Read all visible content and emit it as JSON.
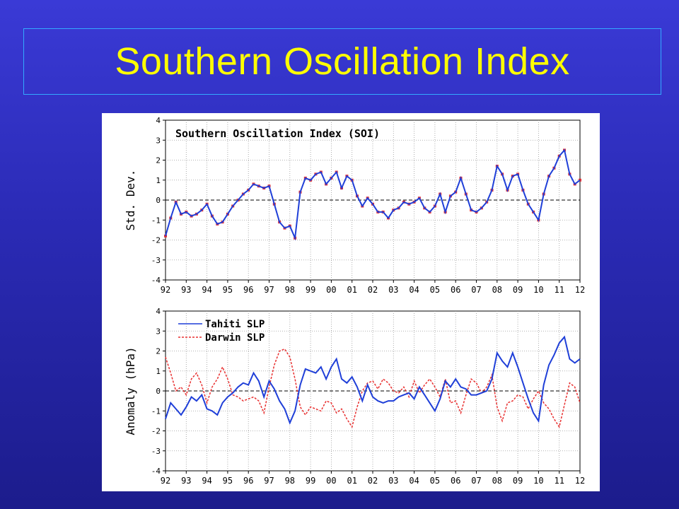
{
  "slide": {
    "title": "Southern Oscillation Index"
  },
  "colors": {
    "title": "#ffff00",
    "soi_line": "#1f3fd8",
    "soi_dots": "#e83030",
    "tahiti": "#1f3fd8",
    "darwin": "#e83030"
  },
  "chart_data": [
    {
      "type": "line",
      "title": "Southern Oscillation Index (SOI)",
      "ylabel": "Std. Dev.",
      "xlabel": "",
      "ylim": [
        -4,
        4
      ],
      "yticks": [
        4,
        3,
        2,
        1,
        0,
        -1,
        -2,
        -3,
        -4
      ],
      "xticks": [
        "92",
        "93",
        "94",
        "95",
        "96",
        "97",
        "98",
        "99",
        "00",
        "01",
        "02",
        "03",
        "04",
        "05",
        "06",
        "07",
        "08",
        "09",
        "10",
        "11",
        "12"
      ],
      "x_range": [
        1992,
        2012
      ],
      "grid": true,
      "series": [
        {
          "style": "line+scatter",
          "x": [
            1992.0,
            1992.25,
            1992.5,
            1992.75,
            1993.0,
            1993.25,
            1993.5,
            1993.75,
            1994.0,
            1994.25,
            1994.5,
            1994.75,
            1995.0,
            1995.25,
            1995.5,
            1995.75,
            1996.0,
            1996.25,
            1996.5,
            1996.75,
            1997.0,
            1997.25,
            1997.5,
            1997.75,
            1998.0,
            1998.25,
            1998.5,
            1998.75,
            1999.0,
            1999.25,
            1999.5,
            1999.75,
            2000.0,
            2000.25,
            2000.5,
            2000.75,
            2001.0,
            2001.25,
            2001.5,
            2001.75,
            2002.0,
            2002.25,
            2002.5,
            2002.75,
            2003.0,
            2003.25,
            2003.5,
            2003.75,
            2004.0,
            2004.25,
            2004.5,
            2004.75,
            2005.0,
            2005.25,
            2005.5,
            2005.75,
            2006.0,
            2006.25,
            2006.5,
            2006.75,
            2007.0,
            2007.25,
            2007.5,
            2007.75,
            2008.0,
            2008.25,
            2008.5,
            2008.75,
            2009.0,
            2009.25,
            2009.5,
            2009.75,
            2010.0,
            2010.25,
            2010.5,
            2010.75,
            2011.0,
            2011.25,
            2011.5,
            2011.75,
            2012.0
          ],
          "values": [
            -1.8,
            -0.9,
            -0.1,
            -0.7,
            -0.6,
            -0.8,
            -0.7,
            -0.5,
            -0.2,
            -0.8,
            -1.2,
            -1.1,
            -0.7,
            -0.3,
            0.0,
            0.3,
            0.5,
            0.8,
            0.7,
            0.6,
            0.7,
            -0.2,
            -1.1,
            -1.4,
            -1.3,
            -1.9,
            0.4,
            1.1,
            1.0,
            1.3,
            1.4,
            0.8,
            1.1,
            1.4,
            0.6,
            1.2,
            1.0,
            0.2,
            -0.3,
            0.1,
            -0.2,
            -0.6,
            -0.6,
            -0.9,
            -0.5,
            -0.4,
            -0.1,
            -0.2,
            -0.1,
            0.1,
            -0.4,
            -0.6,
            -0.3,
            0.3,
            -0.6,
            0.2,
            0.4,
            1.1,
            0.3,
            -0.5,
            -0.6,
            -0.4,
            -0.1,
            0.5,
            1.7,
            1.3,
            0.5,
            1.2,
            1.3,
            0.5,
            -0.2,
            -0.6,
            -1.0,
            0.3,
            1.2,
            1.6,
            2.2,
            2.5,
            1.3,
            0.8,
            1.0
          ]
        }
      ]
    },
    {
      "type": "line",
      "title": "",
      "ylabel": "Anomaly (hPa)",
      "xlabel": "",
      "ylim": [
        -4,
        4
      ],
      "yticks": [
        4,
        3,
        2,
        1,
        0,
        -1,
        -2,
        -3,
        -4
      ],
      "xticks": [
        "92",
        "93",
        "94",
        "95",
        "96",
        "97",
        "98",
        "99",
        "00",
        "01",
        "02",
        "03",
        "04",
        "05",
        "06",
        "07",
        "08",
        "09",
        "10",
        "11",
        "12"
      ],
      "x_range": [
        1992,
        2012
      ],
      "grid": true,
      "legend": "top-left",
      "series": [
        {
          "name": "Tahiti SLP",
          "x": [
            1992.0,
            1992.25,
            1992.5,
            1992.75,
            1993.0,
            1993.25,
            1993.5,
            1993.75,
            1994.0,
            1994.25,
            1994.5,
            1994.75,
            1995.0,
            1995.25,
            1995.5,
            1995.75,
            1996.0,
            1996.25,
            1996.5,
            1996.75,
            1997.0,
            1997.25,
            1997.5,
            1997.75,
            1998.0,
            1998.25,
            1998.5,
            1998.75,
            1999.0,
            1999.25,
            1999.5,
            1999.75,
            2000.0,
            2000.25,
            2000.5,
            2000.75,
            2001.0,
            2001.25,
            2001.5,
            2001.75,
            2002.0,
            2002.25,
            2002.5,
            2002.75,
            2003.0,
            2003.25,
            2003.5,
            2003.75,
            2004.0,
            2004.25,
            2004.5,
            2004.75,
            2005.0,
            2005.25,
            2005.5,
            2005.75,
            2006.0,
            2006.25,
            2006.5,
            2006.75,
            2007.0,
            2007.25,
            2007.5,
            2007.75,
            2008.0,
            2008.25,
            2008.5,
            2008.75,
            2009.0,
            2009.25,
            2009.5,
            2009.75,
            2010.0,
            2010.25,
            2010.5,
            2010.75,
            2011.0,
            2011.25,
            2011.5,
            2011.75,
            2012.0
          ],
          "values": [
            -1.4,
            -0.6,
            -0.9,
            -1.2,
            -0.8,
            -0.3,
            -0.5,
            -0.2,
            -0.9,
            -1.0,
            -1.2,
            -0.6,
            -0.3,
            -0.1,
            0.2,
            0.4,
            0.3,
            0.9,
            0.5,
            -0.3,
            0.5,
            0.1,
            -0.5,
            -0.9,
            -1.6,
            -1.0,
            0.3,
            1.1,
            1.0,
            0.9,
            1.2,
            0.6,
            1.2,
            1.6,
            0.6,
            0.4,
            0.7,
            0.2,
            -0.5,
            0.3,
            -0.3,
            -0.5,
            -0.6,
            -0.5,
            -0.5,
            -0.3,
            -0.2,
            -0.1,
            -0.4,
            0.2,
            -0.2,
            -0.6,
            -1.0,
            -0.4,
            0.5,
            0.2,
            0.6,
            0.2,
            0.1,
            -0.2,
            -0.2,
            -0.1,
            0.0,
            0.6,
            1.9,
            1.5,
            1.2,
            1.9,
            1.2,
            0.4,
            -0.4,
            -1.1,
            -1.5,
            0.3,
            1.3,
            1.8,
            2.4,
            2.7,
            1.6,
            1.4,
            1.6
          ]
        },
        {
          "name": "Darwin SLP",
          "x": [
            1992.0,
            1992.25,
            1992.5,
            1992.75,
            1993.0,
            1993.25,
            1993.5,
            1993.75,
            1994.0,
            1994.25,
            1994.5,
            1994.75,
            1995.0,
            1995.25,
            1995.5,
            1995.75,
            1996.0,
            1996.25,
            1996.5,
            1996.75,
            1997.0,
            1997.25,
            1997.5,
            1997.75,
            1998.0,
            1998.25,
            1998.5,
            1998.75,
            1999.0,
            1999.25,
            1999.5,
            1999.75,
            2000.0,
            2000.25,
            2000.5,
            2000.75,
            2001.0,
            2001.25,
            2001.5,
            2001.75,
            2002.0,
            2002.25,
            2002.5,
            2002.75,
            2003.0,
            2003.25,
            2003.5,
            2003.75,
            2004.0,
            2004.25,
            2004.5,
            2004.75,
            2005.0,
            2005.25,
            2005.5,
            2005.75,
            2006.0,
            2006.25,
            2006.5,
            2006.75,
            2007.0,
            2007.25,
            2007.5,
            2007.75,
            2008.0,
            2008.25,
            2008.5,
            2008.75,
            2009.0,
            2009.25,
            2009.5,
            2009.75,
            2010.0,
            2010.25,
            2010.5,
            2010.75,
            2011.0,
            2011.25,
            2011.5,
            2011.75,
            2012.0
          ],
          "values": [
            1.7,
            0.9,
            0.0,
            0.2,
            -0.2,
            0.6,
            0.9,
            0.3,
            -0.6,
            0.2,
            0.6,
            1.2,
            0.6,
            -0.2,
            -0.3,
            -0.5,
            -0.4,
            -0.3,
            -0.5,
            -1.1,
            0.2,
            1.3,
            2.0,
            2.1,
            1.7,
            0.6,
            -0.8,
            -1.2,
            -0.8,
            -0.9,
            -1.0,
            -0.5,
            -0.6,
            -1.1,
            -0.9,
            -1.4,
            -1.8,
            -0.8,
            0.0,
            0.4,
            0.5,
            0.1,
            0.6,
            0.4,
            0.0,
            -0.1,
            0.2,
            -0.3,
            0.5,
            -0.1,
            0.3,
            0.6,
            0.2,
            -0.3,
            0.6,
            -0.6,
            -0.5,
            -1.1,
            -0.2,
            0.6,
            0.4,
            -0.1,
            0.2,
            0.8,
            -0.8,
            -1.5,
            -0.6,
            -0.5,
            -0.2,
            -0.3,
            -0.9,
            -0.4,
            0.0,
            -0.6,
            -0.9,
            -1.4,
            -1.8,
            -0.7,
            0.4,
            0.2,
            -0.6
          ]
        }
      ]
    }
  ]
}
